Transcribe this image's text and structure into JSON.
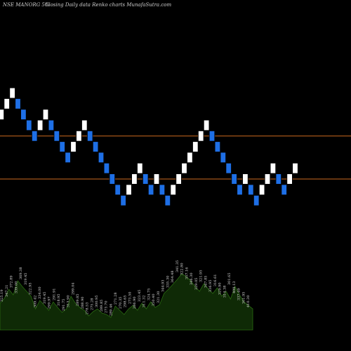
{
  "header": {
    "symbol": "NSE MANORG 5%",
    "caption": "Closing Daily data  Renko  charts MunafaSutra.com"
  },
  "colors": {
    "background": "#000000",
    "brick_up": "#ffffff",
    "brick_down": "#1e6fe6",
    "brick_outline": "#000000",
    "reference_line": "#cc6a1f",
    "volume_fill": "#0f2a06",
    "volume_edge": "#2a6a12",
    "volume_text": "#d8d8d8"
  },
  "chart_data": {
    "type": "renko",
    "brick_pct": 5,
    "price_range": [
      296,
      328
    ],
    "reference_lines": [
      316,
      312
    ],
    "bricks": [
      {
        "dir": "up",
        "level": 318
      },
      {
        "dir": "up",
        "level": 319
      },
      {
        "dir": "up",
        "level": 320
      },
      {
        "dir": "down",
        "level": 319
      },
      {
        "dir": "down",
        "level": 318
      },
      {
        "dir": "down",
        "level": 317
      },
      {
        "dir": "down",
        "level": 316
      },
      {
        "dir": "up",
        "level": 317
      },
      {
        "dir": "up",
        "level": 318
      },
      {
        "dir": "down",
        "level": 317
      },
      {
        "dir": "down",
        "level": 316
      },
      {
        "dir": "down",
        "level": 315
      },
      {
        "dir": "down",
        "level": 314
      },
      {
        "dir": "up",
        "level": 315
      },
      {
        "dir": "up",
        "level": 316
      },
      {
        "dir": "up",
        "level": 317
      },
      {
        "dir": "down",
        "level": 316
      },
      {
        "dir": "down",
        "level": 315
      },
      {
        "dir": "down",
        "level": 314
      },
      {
        "dir": "down",
        "level": 313
      },
      {
        "dir": "down",
        "level": 312
      },
      {
        "dir": "down",
        "level": 311
      },
      {
        "dir": "down",
        "level": 310
      },
      {
        "dir": "up",
        "level": 311
      },
      {
        "dir": "up",
        "level": 312
      },
      {
        "dir": "up",
        "level": 313
      },
      {
        "dir": "down",
        "level": 312
      },
      {
        "dir": "down",
        "level": 311
      },
      {
        "dir": "up",
        "level": 312
      },
      {
        "dir": "down",
        "level": 311
      },
      {
        "dir": "down",
        "level": 310
      },
      {
        "dir": "up",
        "level": 311
      },
      {
        "dir": "up",
        "level": 312
      },
      {
        "dir": "up",
        "level": 313
      },
      {
        "dir": "up",
        "level": 314
      },
      {
        "dir": "up",
        "level": 315
      },
      {
        "dir": "up",
        "level": 316
      },
      {
        "dir": "up",
        "level": 317
      },
      {
        "dir": "down",
        "level": 316
      },
      {
        "dir": "down",
        "level": 315
      },
      {
        "dir": "down",
        "level": 314
      },
      {
        "dir": "down",
        "level": 313
      },
      {
        "dir": "down",
        "level": 312
      },
      {
        "dir": "down",
        "level": 311
      },
      {
        "dir": "up",
        "level": 312
      },
      {
        "dir": "down",
        "level": 311
      },
      {
        "dir": "down",
        "level": 310
      },
      {
        "dir": "up",
        "level": 311
      },
      {
        "dir": "up",
        "level": 312
      },
      {
        "dir": "up",
        "level": 313
      },
      {
        "dir": "down",
        "level": 312
      },
      {
        "dir": "down",
        "level": 311
      },
      {
        "dir": "up",
        "level": 312
      },
      {
        "dir": "up",
        "level": 313
      }
    ],
    "volume": {
      "levels": [
        38,
        45,
        58,
        50,
        70,
        62,
        55,
        48,
        30,
        42,
        35,
        28,
        40,
        32,
        25,
        30,
        48,
        38,
        32,
        28,
        20,
        26,
        30,
        24,
        22,
        18,
        34,
        28,
        22,
        30,
        35,
        28,
        38,
        30,
        40,
        32,
        36,
        52,
        58,
        65,
        72,
        80,
        76,
        70,
        62,
        55,
        66,
        58,
        52,
        60,
        48,
        55,
        44,
        62,
        50,
        40,
        35,
        30
      ],
      "labels": [
        "325.19",
        "347.21",
        "372.89",
        "339.00",
        "369.38",
        "319.45",
        "322.95",
        "309.42",
        "334.00",
        "319.45",
        "299.97",
        "291.91",
        "318.95",
        "291.75",
        "313.90",
        "299.04",
        "289.85",
        "288.90",
        "278.53",
        "275.28",
        "300.95",
        "289.85",
        "273.70",
        "289.46",
        "271.28",
        "270.35",
        "298.65",
        "273.50",
        "286.90",
        "323.45",
        "311.32",
        "324.75",
        "350.40",
        "321.30",
        "344.93",
        "335.30",
        "364.48",
        "341.35",
        "322.80",
        "357.16",
        "346.30",
        "329.05",
        "321.95",
        "347.85",
        "336.95",
        "316.61",
        "329.90",
        "314.38",
        "301.65",
        "409.13",
        "337.49",
        "301.95",
        "410.30"
      ]
    }
  }
}
